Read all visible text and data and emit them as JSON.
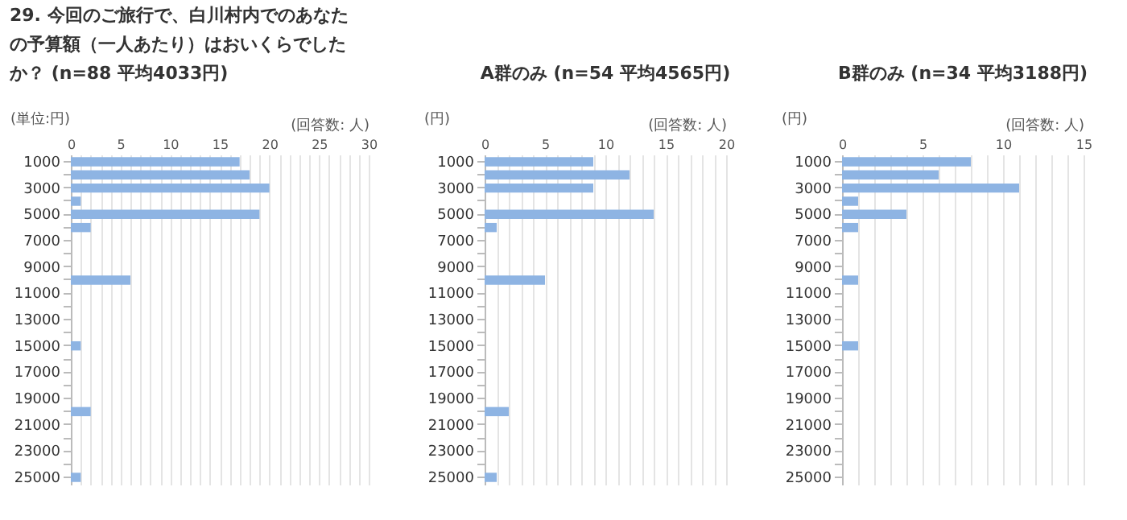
{
  "chart_data": [
    {
      "type": "bar",
      "orientation": "horizontal",
      "title": "29. 今回のご旅行で、白川村内でのあなたの予算額（一人あたり）はおいくらでしたか？ (n=88  平均4033円)",
      "xlabel": "(回答数: 人)",
      "ylabel": "(単位:円)",
      "categories": [
        "1000",
        null,
        "3000",
        null,
        "5000",
        null,
        "7000",
        null,
        "9000",
        null,
        "11000",
        null,
        "13000",
        null,
        "15000",
        null,
        "17000",
        null,
        "19000",
        null,
        "21000",
        null,
        "23000",
        null,
        "25000"
      ],
      "series": [
        {
          "color": "#8eb4e3",
          "values": [
            17,
            18,
            20,
            1,
            19,
            2,
            null,
            null,
            null,
            6,
            null,
            null,
            null,
            null,
            1,
            null,
            null,
            null,
            null,
            2,
            null,
            null,
            null,
            null,
            1
          ]
        }
      ],
      "xlim": [
        0,
        30
      ],
      "xticks": [
        0,
        {
          "value": 1,
          "label": null
        },
        {
          "value": 2,
          "label": null
        },
        {
          "value": 3,
          "label": null
        },
        {
          "value": 4,
          "label": null
        },
        5,
        {
          "value": 6,
          "label": null
        },
        {
          "value": 7,
          "label": null
        },
        {
          "value": 8,
          "label": null
        },
        {
          "value": 9,
          "label": null
        },
        10,
        {
          "value": 11,
          "label": null
        },
        {
          "value": 12,
          "label": null
        },
        {
          "value": 13,
          "label": null
        },
        {
          "value": 14,
          "label": null
        },
        15,
        {
          "value": 16,
          "label": null
        },
        {
          "value": 17,
          "label": null
        },
        {
          "value": 18,
          "label": null
        },
        {
          "value": 19,
          "label": null
        },
        20,
        {
          "value": 21,
          "label": null
        },
        {
          "value": 22,
          "label": null
        },
        {
          "value": 23,
          "label": null
        },
        {
          "value": 24,
          "label": null
        },
        25,
        {
          "value": 26,
          "label": null
        },
        {
          "value": 27,
          "label": null
        },
        {
          "value": 28,
          "label": null
        },
        {
          "value": 29,
          "label": null
        },
        30
      ],
      "grid": "x"
    },
    {
      "type": "bar",
      "orientation": "horizontal",
      "title": "A群のみ (n=54  平均4565円)",
      "xlabel": "(回答数: 人)",
      "ylabel": "(円)",
      "categories": [
        "1000",
        null,
        "3000",
        null,
        "5000",
        null,
        "7000",
        null,
        "9000",
        null,
        "11000",
        null,
        "13000",
        null,
        "15000",
        null,
        "17000",
        null,
        "19000",
        null,
        "21000",
        null,
        "23000",
        null,
        "25000"
      ],
      "series": [
        {
          "color": "#8eb4e3",
          "values": [
            9,
            12,
            9,
            null,
            14,
            1,
            null,
            null,
            null,
            5,
            null,
            null,
            null,
            null,
            null,
            null,
            null,
            null,
            null,
            2,
            null,
            null,
            null,
            null,
            1
          ]
        }
      ],
      "xlim": [
        0,
        20
      ],
      "xticks": [
        0,
        {
          "value": 1,
          "label": null
        },
        {
          "value": 2,
          "label": null
        },
        {
          "value": 3,
          "label": null
        },
        {
          "value": 4,
          "label": null
        },
        5,
        {
          "value": 6,
          "label": null
        },
        {
          "value": 7,
          "label": null
        },
        {
          "value": 8,
          "label": null
        },
        {
          "value": 9,
          "label": null
        },
        10,
        {
          "value": 11,
          "label": null
        },
        {
          "value": 12,
          "label": null
        },
        {
          "value": 13,
          "label": null
        },
        {
          "value": 14,
          "label": null
        },
        15,
        {
          "value": 16,
          "label": null
        },
        {
          "value": 17,
          "label": null
        },
        {
          "value": 18,
          "label": null
        },
        {
          "value": 19,
          "label": null
        },
        20
      ],
      "grid": "x"
    },
    {
      "type": "bar",
      "orientation": "horizontal",
      "title": "B群のみ (n=34  平均3188円)",
      "xlabel": "(回答数: 人)",
      "ylabel": "(円)",
      "categories": [
        "1000",
        null,
        "3000",
        null,
        "5000",
        null,
        "7000",
        null,
        "9000",
        null,
        "11000",
        null,
        "13000",
        null,
        "15000",
        null,
        "17000",
        null,
        "19000",
        null,
        "21000",
        null,
        "23000",
        null,
        "25000"
      ],
      "series": [
        {
          "color": "#8eb4e3",
          "values": [
            8,
            6,
            11,
            1,
            4,
            1,
            null,
            null,
            null,
            1,
            null,
            null,
            null,
            null,
            1,
            null,
            null,
            null,
            null,
            null,
            null,
            null,
            null,
            null,
            null
          ]
        }
      ],
      "xlim": [
        0,
        15
      ],
      "xticks": [
        0,
        {
          "value": 1,
          "label": null
        },
        {
          "value": 2,
          "label": null
        },
        {
          "value": 3,
          "label": null
        },
        {
          "value": 4,
          "label": null
        },
        5,
        {
          "value": 6,
          "label": null
        },
        {
          "value": 7,
          "label": null
        },
        {
          "value": 8,
          "label": null
        },
        {
          "value": 9,
          "label": null
        },
        10,
        {
          "value": 11,
          "label": null
        },
        {
          "value": 12,
          "label": null
        },
        {
          "value": 13,
          "label": null
        },
        {
          "value": 14,
          "label": null
        },
        15
      ],
      "grid": "x"
    }
  ]
}
